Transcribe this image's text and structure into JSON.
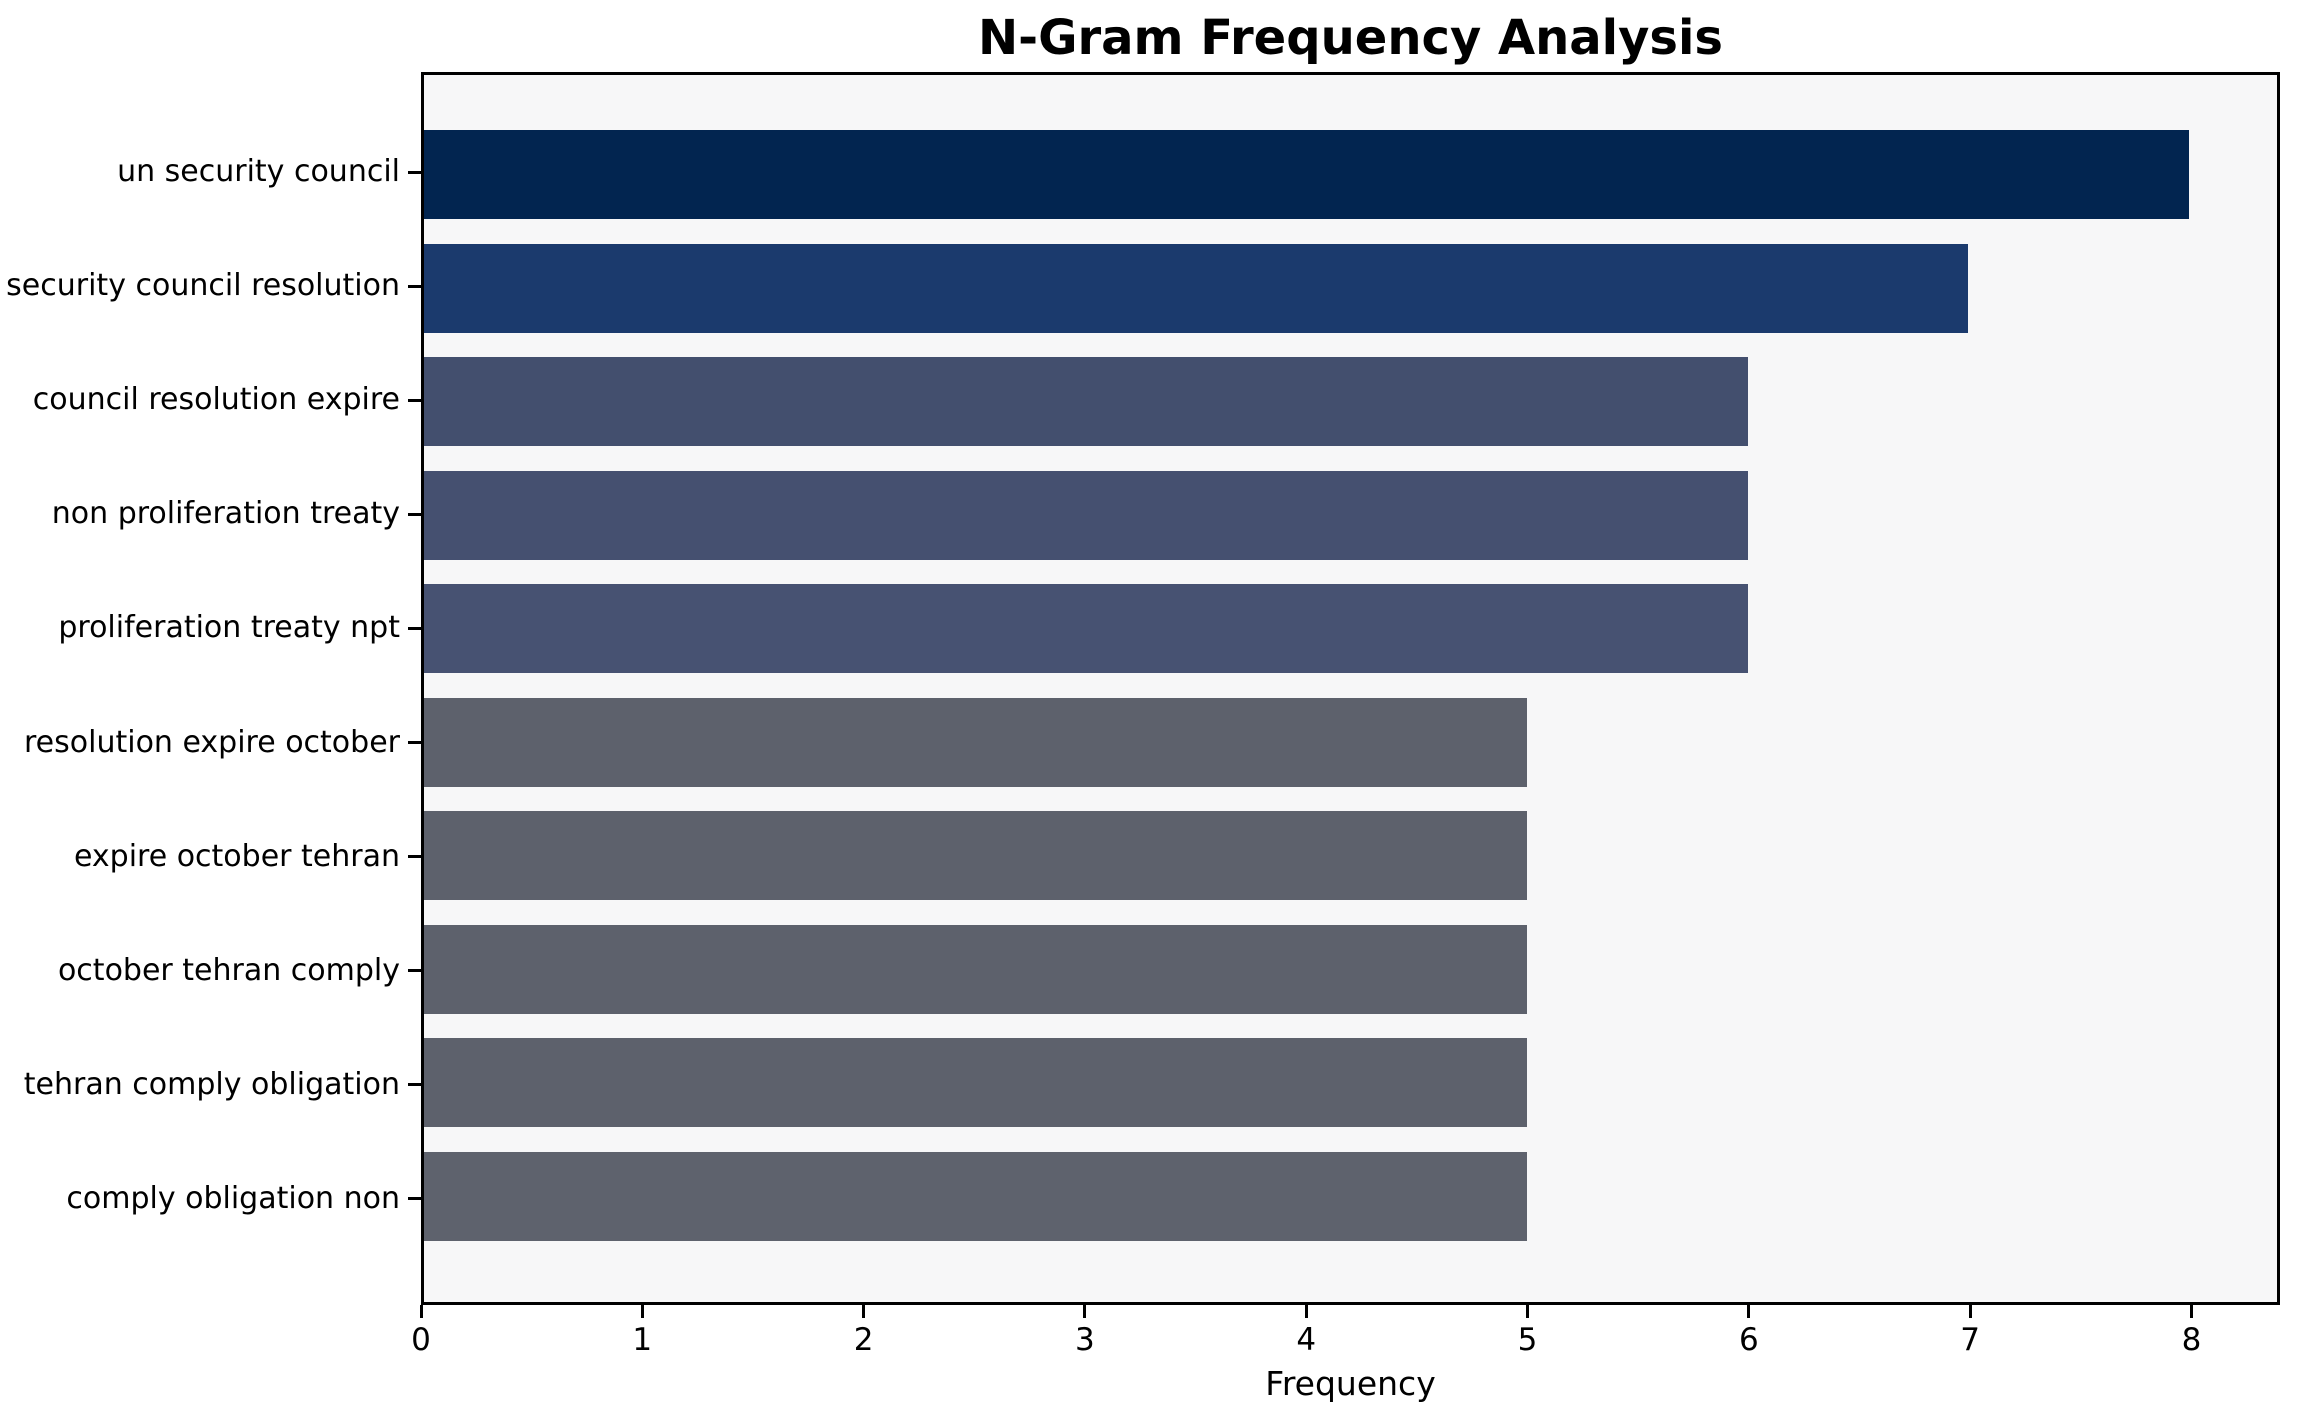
{
  "chart_data": {
    "type": "bar",
    "orientation": "horizontal",
    "title": "N-Gram Frequency Analysis",
    "xlabel": "Frequency",
    "ylabel": "",
    "categories": [
      "un security council",
      "security council resolution",
      "council resolution expire",
      "non proliferation treaty",
      "proliferation treaty npt",
      "resolution expire october",
      "expire october tehran",
      "october tehran comply",
      "tehran comply obligation",
      "comply obligation non"
    ],
    "values": [
      8,
      7,
      6,
      6,
      6,
      5,
      5,
      5,
      5,
      5
    ],
    "bar_colors": [
      "#022550",
      "#1b3a6d",
      "#434f6e",
      "#455070",
      "#475272",
      "#5d616c",
      "#5d616c",
      "#5d616c",
      "#5d616c",
      "#5e626d"
    ],
    "x_ticks": [
      0,
      1,
      2,
      3,
      4,
      5,
      6,
      7,
      8
    ],
    "xlim": [
      0,
      8.4
    ],
    "grid": "off",
    "legend": "none",
    "plot_background": "#f7f7f8",
    "figure_background": "#ffffff",
    "spine_color": "#000000"
  }
}
